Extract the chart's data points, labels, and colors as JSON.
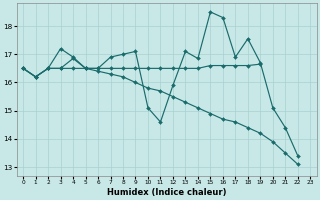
{
  "xlabel": "Humidex (Indice chaleur)",
  "bg_color": "#c8e8e8",
  "grid_color": "#a8d0d0",
  "line_color": "#1a6b6b",
  "xlim": [
    -0.5,
    23.5
  ],
  "ylim": [
    12.7,
    18.8
  ],
  "yticks": [
    13,
    14,
    15,
    16,
    17,
    18
  ],
  "xticks": [
    0,
    1,
    2,
    3,
    4,
    5,
    6,
    7,
    8,
    9,
    10,
    11,
    12,
    13,
    14,
    15,
    16,
    17,
    18,
    19,
    20,
    21,
    22,
    23
  ],
  "line1_x": [
    0,
    1,
    2,
    3,
    4,
    5,
    6,
    7,
    8,
    9,
    10,
    11,
    12,
    13,
    14,
    15,
    16,
    17,
    18,
    19,
    20,
    21,
    22
  ],
  "line1_y": [
    16.5,
    16.2,
    16.5,
    17.2,
    16.9,
    16.5,
    16.5,
    16.9,
    17.0,
    17.1,
    15.1,
    14.6,
    15.9,
    17.1,
    16.85,
    18.5,
    18.3,
    16.9,
    17.55,
    16.7,
    15.1,
    14.4,
    13.4
  ],
  "line2_x": [
    0,
    1,
    2,
    3,
    4,
    5,
    6,
    7,
    8,
    9,
    10,
    11,
    12,
    13,
    14,
    15,
    16,
    17,
    18,
    19
  ],
  "line2_y": [
    16.5,
    16.2,
    16.5,
    16.5,
    16.5,
    16.5,
    16.5,
    16.5,
    16.5,
    16.5,
    16.5,
    16.5,
    16.5,
    16.5,
    16.5,
    16.6,
    16.6,
    16.6,
    16.6,
    16.65
  ],
  "line3_x": [
    0,
    1,
    2,
    3,
    4,
    5,
    6,
    7,
    8,
    9,
    10,
    11,
    12,
    13,
    14,
    15,
    16,
    17,
    18,
    19,
    20,
    21,
    22
  ],
  "line3_y": [
    16.5,
    16.2,
    16.5,
    16.5,
    16.85,
    16.5,
    16.4,
    16.3,
    16.2,
    16.0,
    15.8,
    15.7,
    15.5,
    15.3,
    15.1,
    14.9,
    14.7,
    14.6,
    14.4,
    14.2,
    13.9,
    13.5,
    13.1
  ]
}
